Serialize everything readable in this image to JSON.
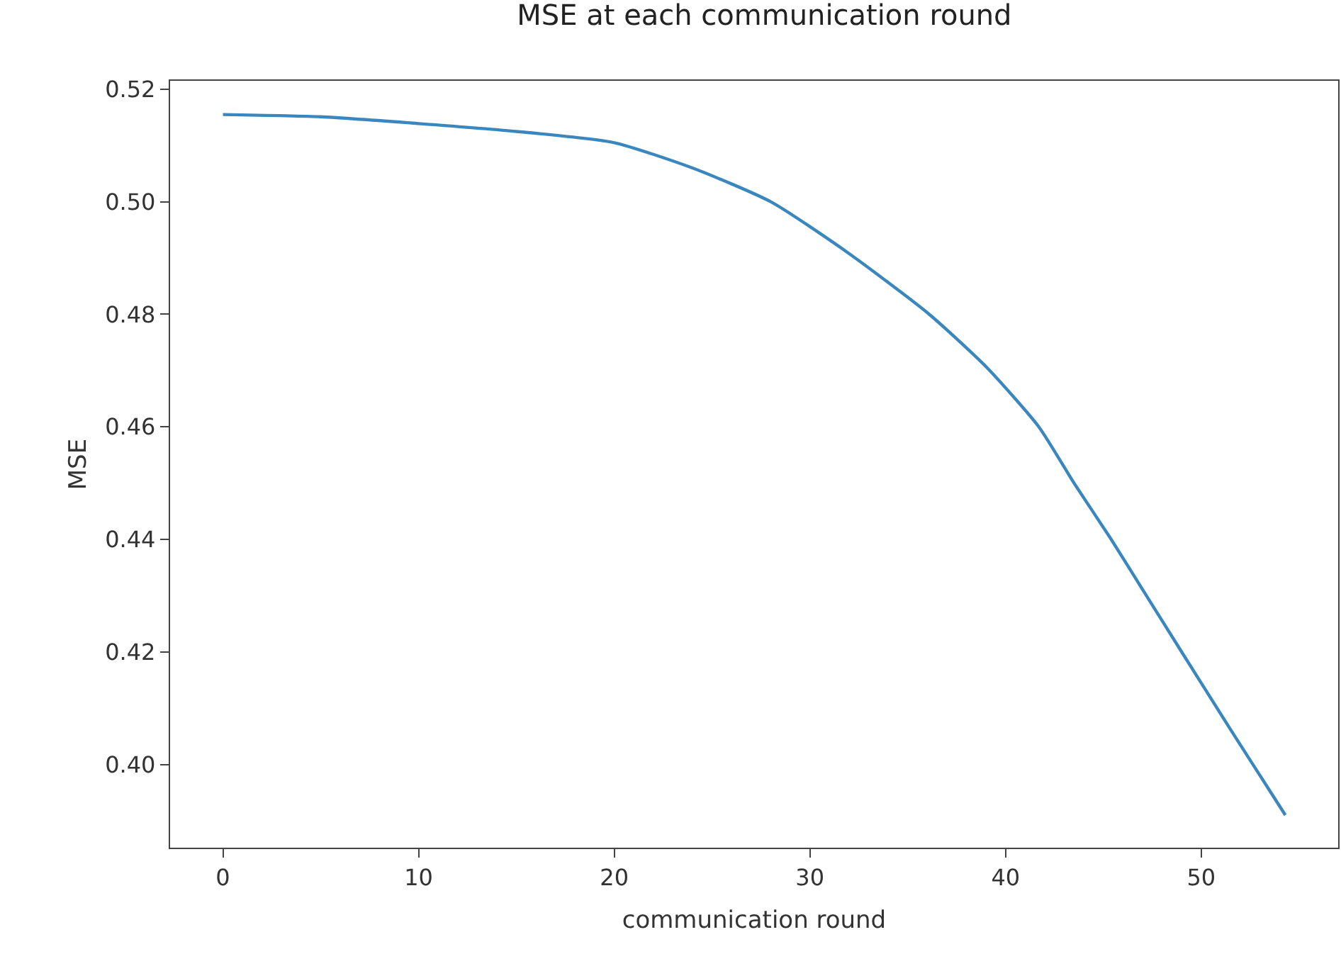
{
  "chart_data": {
    "type": "line",
    "title": "MSE at each communication round",
    "xlabel": "communication round",
    "ylabel": "MSE",
    "x": [
      0,
      5,
      10,
      15,
      20,
      24,
      28,
      32,
      36.1,
      39,
      41.7,
      43.5,
      45.4,
      47,
      49,
      51.5,
      54.3
    ],
    "series": [
      {
        "color": "#3a87c0",
        "values": [
          0.5155,
          0.5151,
          0.5139,
          0.5125,
          0.5105,
          0.506,
          0.5,
          0.4908,
          0.48,
          0.4707,
          0.46,
          0.45,
          0.44,
          0.4311,
          0.42,
          0.4062,
          0.391
        ]
      }
    ],
    "xlim": [
      -2.7,
      57
    ],
    "ylim": [
      0.3852,
      0.5215
    ],
    "xticks": [
      0,
      10,
      20,
      30,
      40,
      50
    ],
    "yticks": [
      {
        "value": 0.4,
        "label": "0.40"
      },
      0.42,
      0.44,
      0.46,
      0.48,
      {
        "value": 0.5,
        "label": "0.50"
      },
      0.52
    ],
    "grid": false,
    "marker": "none",
    "line_style": "solid"
  }
}
